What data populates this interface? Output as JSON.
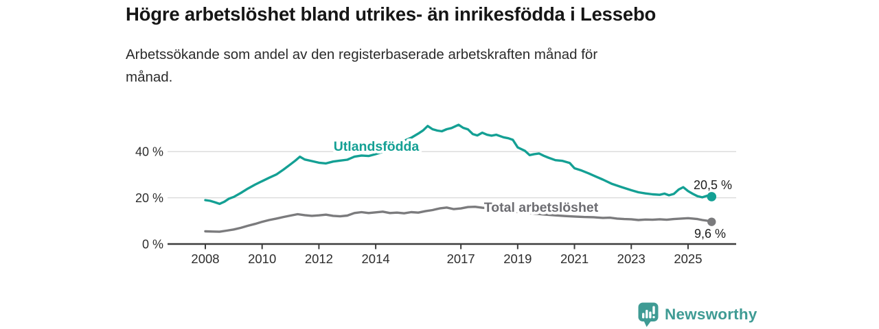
{
  "header": {
    "title": "Högre arbetslöshet bland utrikes- än inrikesfödda i Lessebo",
    "subtitle_lines": [
      "Arbetssökande som andel av den registerbaserade arbetskraften månad för",
      "månad."
    ]
  },
  "footer": {
    "brand": "Newsworthy"
  },
  "colors": {
    "series_foreign": "#14a094",
    "series_total": "#7b7b7d",
    "series_total_label": "#6d6d72",
    "end_label_text": "#1c1c1c",
    "grid": "#dadada",
    "axis": "#3c3c3c",
    "tick_text": "#2d2d2d",
    "title_text": "#161616",
    "logo_teal": "#3f9b94"
  },
  "chart_data": {
    "type": "line",
    "title": "Högre arbetslöshet bland utrikes- än inrikesfödda i Lessebo",
    "subtitle": "Arbetssökande som andel av den registerbaserade arbetskraften månad för månad.",
    "xlabel": "",
    "ylabel": "",
    "unit": "%",
    "xlim": [
      2006.7,
      2026.7
    ],
    "ylim": [
      0,
      55
    ],
    "grid": "horizontal",
    "legend_position": "inline-labels",
    "x_ticks": [
      2008,
      2010,
      2012,
      2014,
      2017,
      2019,
      2021,
      2023,
      2025
    ],
    "x_tick_labels": [
      "2008",
      "2010",
      "2012",
      "2014",
      "2017",
      "2019",
      "2021",
      "2023",
      "2025"
    ],
    "y_ticks": [
      0,
      20,
      40
    ],
    "y_tick_labels": [
      "0 %",
      "20 %",
      "40 %"
    ],
    "series": [
      {
        "name": "Utlandsfödda",
        "color": "#14a094",
        "end_value": 20.5,
        "end_label": "20,5 %",
        "points": [
          [
            2008.0,
            19.0
          ],
          [
            2008.17,
            18.7
          ],
          [
            2008.33,
            18.1
          ],
          [
            2008.5,
            17.4
          ],
          [
            2008.67,
            18.3
          ],
          [
            2008.83,
            19.6
          ],
          [
            2009.0,
            20.4
          ],
          [
            2009.25,
            22.1
          ],
          [
            2009.5,
            24.0
          ],
          [
            2009.75,
            25.7
          ],
          [
            2010.0,
            27.2
          ],
          [
            2010.25,
            28.7
          ],
          [
            2010.5,
            30.1
          ],
          [
            2010.75,
            32.2
          ],
          [
            2011.0,
            34.5
          ],
          [
            2011.17,
            36.1
          ],
          [
            2011.33,
            37.8
          ],
          [
            2011.5,
            36.6
          ],
          [
            2011.75,
            35.9
          ],
          [
            2012.0,
            35.2
          ],
          [
            2012.25,
            34.9
          ],
          [
            2012.5,
            35.7
          ],
          [
            2012.75,
            36.1
          ],
          [
            2013.0,
            36.5
          ],
          [
            2013.25,
            37.8
          ],
          [
            2013.5,
            38.3
          ],
          [
            2013.75,
            38.1
          ],
          [
            2014.0,
            38.9
          ],
          [
            2014.25,
            39.9
          ],
          [
            2014.5,
            41.0
          ],
          [
            2014.75,
            42.9
          ],
          [
            2015.0,
            44.7
          ],
          [
            2015.25,
            46.0
          ],
          [
            2015.5,
            47.8
          ],
          [
            2015.67,
            49.2
          ],
          [
            2015.83,
            51.1
          ],
          [
            2016.0,
            49.7
          ],
          [
            2016.17,
            49.1
          ],
          [
            2016.33,
            48.8
          ],
          [
            2016.5,
            49.7
          ],
          [
            2016.67,
            50.2
          ],
          [
            2016.92,
            51.6
          ],
          [
            2017.08,
            50.3
          ],
          [
            2017.25,
            49.6
          ],
          [
            2017.42,
            47.6
          ],
          [
            2017.58,
            47.0
          ],
          [
            2017.75,
            48.2
          ],
          [
            2017.92,
            47.3
          ],
          [
            2018.08,
            46.9
          ],
          [
            2018.25,
            47.3
          ],
          [
            2018.5,
            46.2
          ],
          [
            2018.67,
            45.8
          ],
          [
            2018.83,
            45.1
          ],
          [
            2019.0,
            41.8
          ],
          [
            2019.25,
            40.4
          ],
          [
            2019.42,
            38.5
          ],
          [
            2019.58,
            38.9
          ],
          [
            2019.75,
            39.2
          ],
          [
            2019.92,
            38.2
          ],
          [
            2020.08,
            37.4
          ],
          [
            2020.33,
            36.3
          ],
          [
            2020.58,
            36.0
          ],
          [
            2020.83,
            35.1
          ],
          [
            2021.0,
            32.8
          ],
          [
            2021.25,
            31.8
          ],
          [
            2021.5,
            30.6
          ],
          [
            2021.75,
            29.2
          ],
          [
            2022.0,
            27.9
          ],
          [
            2022.33,
            26.0
          ],
          [
            2022.67,
            24.6
          ],
          [
            2023.0,
            23.3
          ],
          [
            2023.25,
            22.4
          ],
          [
            2023.5,
            21.9
          ],
          [
            2023.75,
            21.5
          ],
          [
            2024.0,
            21.3
          ],
          [
            2024.17,
            21.8
          ],
          [
            2024.33,
            21.1
          ],
          [
            2024.5,
            21.7
          ],
          [
            2024.67,
            23.6
          ],
          [
            2024.83,
            24.6
          ],
          [
            2025.0,
            22.9
          ],
          [
            2025.17,
            21.7
          ],
          [
            2025.33,
            20.7
          ],
          [
            2025.5,
            20.2
          ],
          [
            2025.67,
            20.9
          ],
          [
            2025.83,
            20.5
          ]
        ]
      },
      {
        "name": "Total arbetslöshet",
        "color": "#7b7b7d",
        "end_value": 9.6,
        "end_label": "9,6 %",
        "points": [
          [
            2008.0,
            5.5
          ],
          [
            2008.25,
            5.4
          ],
          [
            2008.5,
            5.3
          ],
          [
            2008.75,
            5.8
          ],
          [
            2009.0,
            6.3
          ],
          [
            2009.25,
            7.0
          ],
          [
            2009.5,
            7.9
          ],
          [
            2009.75,
            8.7
          ],
          [
            2010.0,
            9.6
          ],
          [
            2010.25,
            10.4
          ],
          [
            2010.5,
            11.0
          ],
          [
            2010.75,
            11.7
          ],
          [
            2011.0,
            12.3
          ],
          [
            2011.25,
            12.9
          ],
          [
            2011.5,
            12.5
          ],
          [
            2011.75,
            12.2
          ],
          [
            2012.0,
            12.4
          ],
          [
            2012.25,
            12.7
          ],
          [
            2012.5,
            12.2
          ],
          [
            2012.75,
            12.0
          ],
          [
            2013.0,
            12.3
          ],
          [
            2013.25,
            13.4
          ],
          [
            2013.5,
            13.8
          ],
          [
            2013.75,
            13.4
          ],
          [
            2014.0,
            13.7
          ],
          [
            2014.25,
            14.0
          ],
          [
            2014.5,
            13.4
          ],
          [
            2014.75,
            13.6
          ],
          [
            2015.0,
            13.3
          ],
          [
            2015.25,
            13.8
          ],
          [
            2015.5,
            13.6
          ],
          [
            2015.75,
            14.2
          ],
          [
            2016.0,
            14.7
          ],
          [
            2016.25,
            15.4
          ],
          [
            2016.5,
            15.8
          ],
          [
            2016.75,
            15.1
          ],
          [
            2017.0,
            15.4
          ],
          [
            2017.25,
            16.0
          ],
          [
            2017.5,
            16.1
          ],
          [
            2017.75,
            15.7
          ],
          [
            2018.0,
            15.4
          ],
          [
            2018.33,
            14.9
          ],
          [
            2018.67,
            14.4
          ],
          [
            2019.0,
            13.9
          ],
          [
            2019.33,
            13.5
          ],
          [
            2019.67,
            13.1
          ],
          [
            2020.0,
            12.7
          ],
          [
            2020.33,
            12.4
          ],
          [
            2020.67,
            12.1
          ],
          [
            2021.0,
            11.9
          ],
          [
            2021.33,
            11.7
          ],
          [
            2021.67,
            11.6
          ],
          [
            2022.0,
            11.3
          ],
          [
            2022.25,
            11.4
          ],
          [
            2022.5,
            11.0
          ],
          [
            2022.75,
            10.8
          ],
          [
            2023.0,
            10.7
          ],
          [
            2023.25,
            10.4
          ],
          [
            2023.5,
            10.6
          ],
          [
            2023.75,
            10.5
          ],
          [
            2024.0,
            10.7
          ],
          [
            2024.25,
            10.5
          ],
          [
            2024.5,
            10.8
          ],
          [
            2024.75,
            11.0
          ],
          [
            2025.0,
            11.2
          ],
          [
            2025.17,
            11.0
          ],
          [
            2025.33,
            10.8
          ],
          [
            2025.5,
            10.4
          ],
          [
            2025.67,
            10.1
          ],
          [
            2025.83,
            9.6
          ]
        ]
      }
    ]
  }
}
